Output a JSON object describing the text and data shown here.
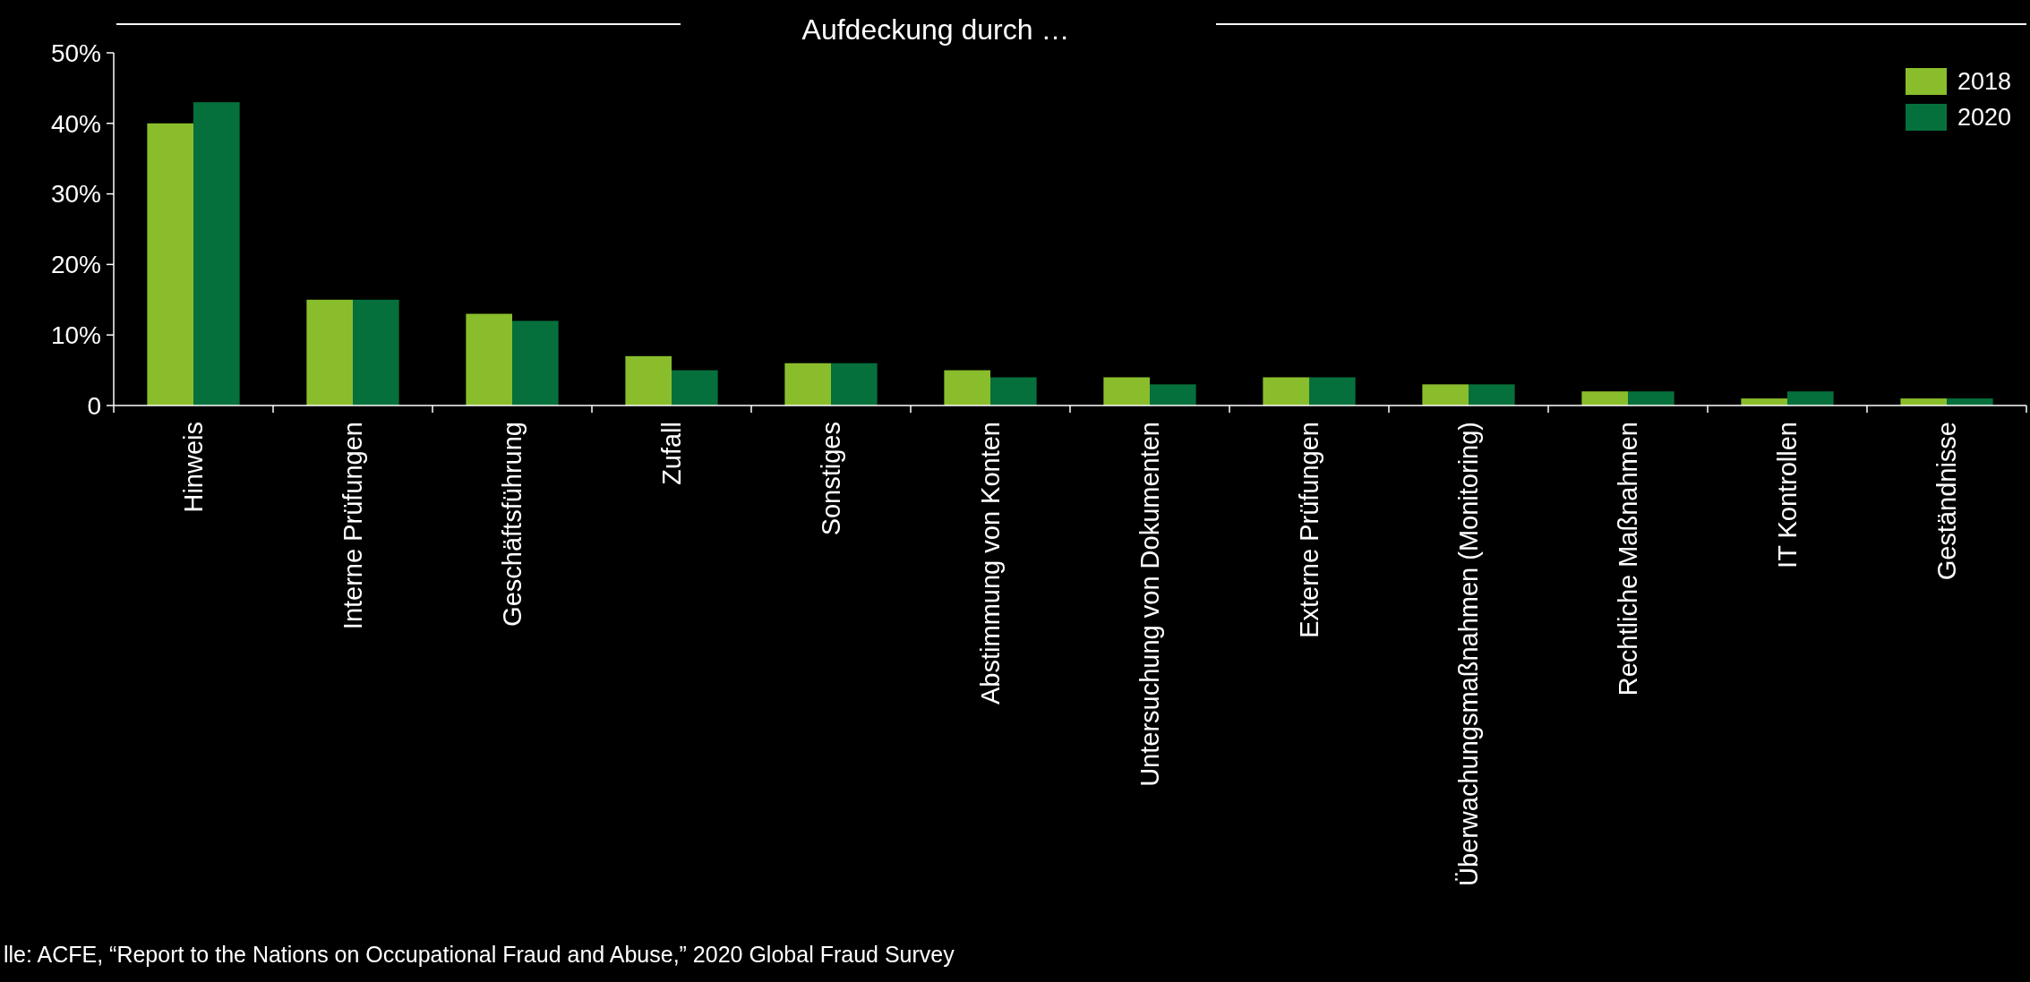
{
  "chart_data": {
    "type": "bar",
    "title": "Aufdeckung durch …",
    "categories": [
      "Hinweis",
      "Interne Prüfungen",
      "Geschäftsführung",
      "Zufall",
      "Sonstiges",
      "Abstimmung von Konten",
      "Untersuchung von Dokumenten",
      "Externe Prüfungen",
      "Überwachungsmaßnahmen (Monitoring)",
      "Rechtliche Maßnahmen",
      "IT Kontrollen",
      "Geständnisse"
    ],
    "series": [
      {
        "name": "2018",
        "color": "#8abd2c",
        "values": [
          40,
          15,
          13,
          7,
          6,
          5,
          4,
          4,
          3,
          2,
          1,
          1
        ]
      },
      {
        "name": "2020",
        "color": "#06703c",
        "values": [
          43,
          15,
          12,
          5,
          6,
          4,
          3,
          4,
          3,
          2,
          2,
          1
        ]
      }
    ],
    "ylim": [
      0,
      50
    ],
    "yticks": [
      {
        "value": 0,
        "label": "0"
      },
      {
        "value": 10,
        "label": "10%"
      },
      {
        "value": 20,
        "label": "20%"
      },
      {
        "value": 30,
        "label": "30%"
      },
      {
        "value": 40,
        "label": "40%"
      },
      {
        "value": 50,
        "label": "50%"
      }
    ],
    "grid": false,
    "legend": "top right",
    "annotations": [
      "lle: ACFE, “Report to the Nations on Occupational Fraud and Abuse,” 2020 Global Fraud Survey"
    ]
  }
}
